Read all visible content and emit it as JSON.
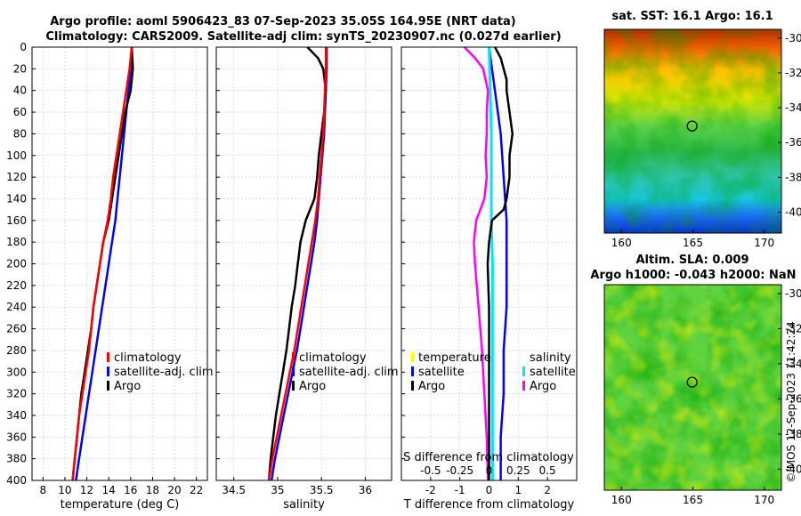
{
  "figure": {
    "title_line1": "Argo profile: aoml 5906423_83 07-Sep-2023 35.05S 164.95E (NRT data)",
    "title_line2": "Climatology: CARS2009. Satellite-adj clim: synTS_20230907.nc (0.027d earlier)",
    "timestamp": "©IMOS 12-Sep-2023 11:42:24"
  },
  "colors": {
    "climatology": "#ff0000",
    "satellite": "#0000ff",
    "argo": "#000000",
    "salinity_diff": "#00e5ff",
    "argo_sal_diff": "#ff00ff"
  },
  "legends": {
    "temperature": [
      "climatology",
      "satellite-adj. clim",
      "Argo"
    ],
    "salinity": [
      "climatology",
      "satellite-adj. clim",
      "Argo"
    ],
    "diff_left": [
      "temperature",
      "satellite",
      "Argo"
    ],
    "diff_right": [
      "salinity",
      "satellite",
      "Argo"
    ]
  },
  "chart_data": [
    {
      "type": "line",
      "name": "temperature",
      "xlabel": "temperature (deg C)",
      "ylabel": "",
      "xlim": [
        7,
        23
      ],
      "ylim": [
        400,
        0
      ],
      "xticks": [
        8,
        10,
        12,
        14,
        16,
        18,
        20,
        22
      ],
      "yticks": [
        0,
        20,
        40,
        60,
        80,
        100,
        120,
        140,
        160,
        180,
        200,
        220,
        240,
        260,
        280,
        300,
        320,
        340,
        360,
        380,
        400
      ],
      "grid": true,
      "series": [
        {
          "name": "climatology",
          "depth": [
            0,
            20,
            40,
            60,
            80,
            100,
            120,
            140,
            160,
            180,
            200,
            220,
            240,
            260,
            280,
            300,
            320,
            340,
            360,
            380,
            400
          ],
          "values": [
            16.1,
            15.9,
            15.6,
            15.3,
            15.0,
            14.7,
            14.4,
            14.2,
            13.9,
            13.5,
            13.2,
            12.9,
            12.6,
            12.4,
            12.2,
            11.9,
            11.6,
            11.3,
            11.1,
            10.9,
            10.7
          ]
        },
        {
          "name": "satellite-adj. clim",
          "depth": [
            0,
            20,
            40,
            60,
            80,
            100,
            120,
            140,
            160,
            180,
            200,
            220,
            240,
            260,
            280,
            300,
            320,
            340,
            360,
            380,
            400
          ],
          "values": [
            16.1,
            16.0,
            15.8,
            15.6,
            15.4,
            15.2,
            15.0,
            14.8,
            14.6,
            14.3,
            14.0,
            13.7,
            13.4,
            13.1,
            12.8,
            12.5,
            12.2,
            11.9,
            11.6,
            11.3,
            11.0
          ]
        },
        {
          "name": "Argo",
          "depth": [
            0,
            20,
            40,
            60,
            80,
            100,
            120,
            140,
            160,
            180,
            200,
            220,
            240,
            260,
            280,
            300,
            320,
            340,
            360,
            380,
            400
          ],
          "values": [
            16.1,
            16.2,
            16.0,
            15.5,
            15.2,
            14.9,
            14.6,
            14.3,
            14.0,
            13.5,
            13.2,
            12.9,
            12.6,
            12.4,
            12.1,
            11.8,
            11.5,
            11.3,
            11.1,
            10.9,
            10.7
          ]
        }
      ]
    },
    {
      "type": "line",
      "name": "salinity",
      "xlabel": "salinity",
      "ylabel": "",
      "xlim": [
        34.3,
        36.3
      ],
      "ylim": [
        400,
        0
      ],
      "xticks": [
        34.5,
        35,
        35.5,
        36
      ],
      "yticks": [
        0,
        20,
        40,
        60,
        80,
        100,
        120,
        140,
        160,
        180,
        200,
        220,
        240,
        260,
        280,
        300,
        320,
        340,
        360,
        380,
        400
      ],
      "grid": true,
      "series": [
        {
          "name": "climatology",
          "depth": [
            0,
            20,
            40,
            60,
            80,
            100,
            120,
            140,
            160,
            180,
            200,
            220,
            240,
            260,
            280,
            300,
            320,
            340,
            360,
            380,
            400
          ],
          "values": [
            35.55,
            35.55,
            35.54,
            35.53,
            35.52,
            35.5,
            35.48,
            35.46,
            35.43,
            35.39,
            35.35,
            35.31,
            35.27,
            35.23,
            35.19,
            35.14,
            35.09,
            35.04,
            34.99,
            34.94,
            34.9
          ]
        },
        {
          "name": "satellite-adj. clim",
          "depth": [
            0,
            20,
            40,
            60,
            80,
            100,
            120,
            140,
            160,
            180,
            200,
            220,
            240,
            260,
            280,
            300,
            320,
            340,
            360,
            380,
            400
          ],
          "values": [
            35.56,
            35.56,
            35.55,
            35.54,
            35.53,
            35.51,
            35.49,
            35.47,
            35.45,
            35.42,
            35.38,
            35.34,
            35.3,
            35.26,
            35.22,
            35.17,
            35.12,
            35.07,
            35.02,
            34.97,
            34.93
          ]
        },
        {
          "name": "Argo",
          "depth": [
            0,
            10,
            20,
            40,
            60,
            80,
            100,
            120,
            140,
            160,
            180,
            200,
            220,
            240,
            260,
            280,
            300,
            320,
            340,
            360,
            380,
            400
          ],
          "values": [
            35.34,
            35.46,
            35.52,
            35.55,
            35.53,
            35.5,
            35.47,
            35.45,
            35.42,
            35.32,
            35.26,
            35.23,
            35.2,
            35.16,
            35.13,
            35.1,
            35.06,
            35.02,
            34.98,
            34.95,
            34.92,
            34.9
          ]
        }
      ]
    },
    {
      "type": "line",
      "name": "difference",
      "xlabel": "T difference from climatology",
      "xlabel_top": "S difference from climatology",
      "xlim": [
        -3,
        3
      ],
      "ylim": [
        400,
        0
      ],
      "xticks": [
        -2,
        -1,
        0,
        1,
        2
      ],
      "xticks_top": [
        -0.5,
        -0.25,
        0,
        0.25,
        0.5
      ],
      "xticks_top_labels": [
        "-0.5",
        "-0.25",
        "0",
        "0.25",
        "0.5"
      ],
      "yticks": [
        0,
        20,
        40,
        60,
        80,
        100,
        120,
        140,
        160,
        180,
        200,
        220,
        240,
        260,
        280,
        300,
        320,
        340,
        360,
        380,
        400
      ],
      "grid": true,
      "series": [
        {
          "name": "temperature satellite",
          "depth": [
            0,
            40,
            80,
            120,
            160,
            200,
            240,
            280,
            320,
            360,
            400
          ],
          "values": [
            0.0,
            0.2,
            0.4,
            0.5,
            0.6,
            0.6,
            0.6,
            0.5,
            0.5,
            0.4,
            0.4
          ]
        },
        {
          "name": "temperature Argo",
          "depth": [
            0,
            10,
            20,
            30,
            40,
            60,
            80,
            100,
            120,
            140,
            150,
            160,
            180,
            200,
            240,
            280,
            320,
            360,
            400
          ],
          "values": [
            0.2,
            0.4,
            0.5,
            0.6,
            0.6,
            0.7,
            0.8,
            0.7,
            0.7,
            0.6,
            0.5,
            0.1,
            0.0,
            -0.05,
            0.0,
            0.0,
            0.0,
            0.0,
            0.0
          ]
        },
        {
          "name": "salinity satellite",
          "depth": [
            0,
            40,
            80,
            120,
            160,
            200,
            240,
            280,
            320,
            360,
            400
          ],
          "values": [
            0.0,
            0.01,
            0.02,
            0.02,
            0.02,
            0.03,
            0.03,
            0.03,
            0.03,
            0.03,
            0.03
          ]
        },
        {
          "name": "salinity Argo",
          "depth": [
            0,
            10,
            20,
            40,
            60,
            80,
            100,
            120,
            140,
            160,
            180,
            200,
            240,
            280,
            320,
            360,
            400
          ],
          "values": [
            -0.21,
            -0.12,
            -0.05,
            -0.01,
            -0.02,
            -0.02,
            -0.03,
            -0.02,
            -0.04,
            -0.11,
            -0.13,
            -0.12,
            -0.09,
            -0.06,
            -0.04,
            -0.02,
            -0.01
          ]
        }
      ]
    },
    {
      "type": "heatmap",
      "name": "sst_map",
      "title": "sat. SST: 16.1 Argo: 16.1",
      "xlim": [
        158.8,
        171.2
      ],
      "ylim": [
        -41.2,
        -29.5
      ],
      "xticks": [
        160,
        165,
        170
      ],
      "yticks": [
        -30,
        -32,
        -34,
        -36,
        -38,
        -40
      ],
      "marker": {
        "lon": 164.95,
        "lat": -35.05
      }
    },
    {
      "type": "heatmap",
      "name": "sla_map",
      "title_line1": "Altim. SLA: 0.009",
      "title_line2": "Argo h1000: -0.043 h2000: NaN",
      "xlim": [
        158.8,
        171.2
      ],
      "ylim": [
        -41.2,
        -29.5
      ],
      "xticks": [
        160,
        165,
        170
      ],
      "yticks": [
        -30,
        -32,
        -34,
        -36,
        -38,
        -40
      ],
      "marker": {
        "lon": 164.95,
        "lat": -35.05
      }
    }
  ]
}
